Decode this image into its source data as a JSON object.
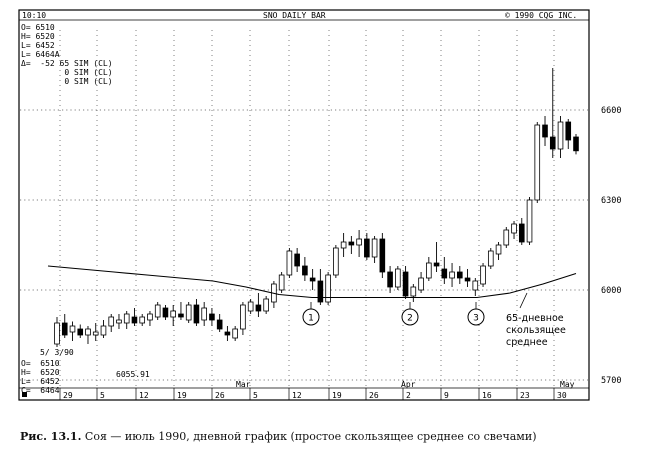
{
  "header": {
    "time": "10:10",
    "title": "SNO DAILY BAR",
    "copyright": "©  1990 CQG INC."
  },
  "top_readout": {
    "lines": [
      "O= 6510",
      "H= 6520",
      "L= 6452",
      "L= 6464A",
      "Δ=  -52 65 SIM (CL)",
      "         0 SIM (CL)",
      "         0 SIM (CL)"
    ]
  },
  "bottom_readout": {
    "date": "5/ 3/90",
    "lines": [
      "O=  6510",
      "H=  6520",
      "L=  6452",
      "C=  6464"
    ],
    "ma_value": "6055.91"
  },
  "annotation": {
    "ma_label_lines": [
      "65-дневное",
      "скользящее",
      "среднее"
    ],
    "circle_labels": [
      "1",
      "2",
      "3"
    ]
  },
  "caption": {
    "label": "Рис. 13.1.",
    "text": "Соя — июль 1990, дневной график (простое скользящее среднее со свечами)"
  },
  "chart_data": {
    "type": "candlestick",
    "title": "SNO DAILY BAR",
    "y_ticks": [
      6600,
      6300,
      6000,
      5700
    ],
    "ylim": [
      5620,
      6800
    ],
    "grid": "dotted",
    "x_ticks": [
      "29",
      "5",
      "12",
      "19",
      "26",
      "5",
      "12",
      "19",
      "26",
      "2",
      "9",
      "16",
      "23",
      "30"
    ],
    "months": [
      "Mar",
      "Apr",
      "May"
    ],
    "candles": [
      {
        "o": 5820,
        "h": 5910,
        "l": 5810,
        "c": 5890
      },
      {
        "o": 5890,
        "h": 5920,
        "l": 5840,
        "c": 5850
      },
      {
        "o": 5860,
        "h": 5895,
        "l": 5830,
        "c": 5880
      },
      {
        "o": 5870,
        "h": 5885,
        "l": 5840,
        "c": 5850
      },
      {
        "o": 5850,
        "h": 5880,
        "l": 5820,
        "c": 5870
      },
      {
        "o": 5850,
        "h": 5890,
        "l": 5830,
        "c": 5860
      },
      {
        "o": 5850,
        "h": 5900,
        "l": 5840,
        "c": 5880
      },
      {
        "o": 5880,
        "h": 5920,
        "l": 5860,
        "c": 5910
      },
      {
        "o": 5890,
        "h": 5920,
        "l": 5870,
        "c": 5900
      },
      {
        "o": 5890,
        "h": 5930,
        "l": 5870,
        "c": 5920
      },
      {
        "o": 5910,
        "h": 5940,
        "l": 5880,
        "c": 5890
      },
      {
        "o": 5890,
        "h": 5920,
        "l": 5880,
        "c": 5910
      },
      {
        "o": 5900,
        "h": 5930,
        "l": 5880,
        "c": 5920
      },
      {
        "o": 5910,
        "h": 5960,
        "l": 5900,
        "c": 5950
      },
      {
        "o": 5940,
        "h": 5950,
        "l": 5900,
        "c": 5910
      },
      {
        "o": 5910,
        "h": 5950,
        "l": 5880,
        "c": 5930
      },
      {
        "o": 5920,
        "h": 5960,
        "l": 5900,
        "c": 5910
      },
      {
        "o": 5900,
        "h": 5960,
        "l": 5890,
        "c": 5950
      },
      {
        "o": 5950,
        "h": 5970,
        "l": 5880,
        "c": 5890
      },
      {
        "o": 5900,
        "h": 5960,
        "l": 5880,
        "c": 5940
      },
      {
        "o": 5920,
        "h": 5940,
        "l": 5880,
        "c": 5900
      },
      {
        "o": 5900,
        "h": 5920,
        "l": 5860,
        "c": 5870
      },
      {
        "o": 5860,
        "h": 5880,
        "l": 5830,
        "c": 5850
      },
      {
        "o": 5840,
        "h": 5880,
        "l": 5830,
        "c": 5870
      },
      {
        "o": 5870,
        "h": 5960,
        "l": 5850,
        "c": 5950
      },
      {
        "o": 5930,
        "h": 5970,
        "l": 5920,
        "c": 5960
      },
      {
        "o": 5950,
        "h": 5990,
        "l": 5910,
        "c": 5930
      },
      {
        "o": 5930,
        "h": 5980,
        "l": 5920,
        "c": 5970
      },
      {
        "o": 5960,
        "h": 6030,
        "l": 5940,
        "c": 6020
      },
      {
        "o": 6000,
        "h": 6060,
        "l": 5990,
        "c": 6050
      },
      {
        "o": 6050,
        "h": 6140,
        "l": 6040,
        "c": 6130
      },
      {
        "o": 6120,
        "h": 6140,
        "l": 6060,
        "c": 6080
      },
      {
        "o": 6080,
        "h": 6110,
        "l": 6030,
        "c": 6050
      },
      {
        "o": 6040,
        "h": 6070,
        "l": 6000,
        "c": 6030
      },
      {
        "o": 6030,
        "h": 6070,
        "l": 5950,
        "c": 5960
      },
      {
        "o": 5960,
        "h": 6060,
        "l": 5950,
        "c": 6050
      },
      {
        "o": 6050,
        "h": 6150,
        "l": 6040,
        "c": 6140
      },
      {
        "o": 6140,
        "h": 6190,
        "l": 6110,
        "c": 6160
      },
      {
        "o": 6160,
        "h": 6180,
        "l": 6120,
        "c": 6150
      },
      {
        "o": 6150,
        "h": 6200,
        "l": 6110,
        "c": 6170
      },
      {
        "o": 6170,
        "h": 6190,
        "l": 6100,
        "c": 6110
      },
      {
        "o": 6110,
        "h": 6180,
        "l": 6090,
        "c": 6170
      },
      {
        "o": 6170,
        "h": 6190,
        "l": 6040,
        "c": 6060
      },
      {
        "o": 6060,
        "h": 6080,
        "l": 5990,
        "c": 6010
      },
      {
        "o": 6010,
        "h": 6080,
        "l": 6000,
        "c": 6070
      },
      {
        "o": 6060,
        "h": 6080,
        "l": 5970,
        "c": 5980
      },
      {
        "o": 5980,
        "h": 6020,
        "l": 5960,
        "c": 6010
      },
      {
        "o": 6000,
        "h": 6060,
        "l": 5990,
        "c": 6040
      },
      {
        "o": 6040,
        "h": 6110,
        "l": 6030,
        "c": 6090
      },
      {
        "o": 6090,
        "h": 6160,
        "l": 6060,
        "c": 6080
      },
      {
        "o": 6070,
        "h": 6110,
        "l": 6020,
        "c": 6040
      },
      {
        "o": 6040,
        "h": 6090,
        "l": 6010,
        "c": 6060
      },
      {
        "o": 6060,
        "h": 6080,
        "l": 6020,
        "c": 6040
      },
      {
        "o": 6040,
        "h": 6070,
        "l": 6010,
        "c": 6030
      },
      {
        "o": 6000,
        "h": 6040,
        "l": 5980,
        "c": 6030
      },
      {
        "o": 6020,
        "h": 6090,
        "l": 6010,
        "c": 6080
      },
      {
        "o": 6080,
        "h": 6140,
        "l": 6070,
        "c": 6130
      },
      {
        "o": 6120,
        "h": 6160,
        "l": 6100,
        "c": 6150
      },
      {
        "o": 6150,
        "h": 6210,
        "l": 6140,
        "c": 6200
      },
      {
        "o": 6190,
        "h": 6230,
        "l": 6170,
        "c": 6220
      },
      {
        "o": 6220,
        "h": 6240,
        "l": 6150,
        "c": 6160
      },
      {
        "o": 6160,
        "h": 6310,
        "l": 6150,
        "c": 6300
      },
      {
        "o": 6300,
        "h": 6560,
        "l": 6290,
        "c": 6550
      },
      {
        "o": 6550,
        "h": 6580,
        "l": 6480,
        "c": 6510
      },
      {
        "o": 6510,
        "h": 6740,
        "l": 6440,
        "c": 6470
      },
      {
        "o": 6470,
        "h": 6580,
        "l": 6440,
        "c": 6560
      },
      {
        "o": 6560,
        "h": 6570,
        "l": 6470,
        "c": 6500
      },
      {
        "o": 6510,
        "h": 6520,
        "l": 6452,
        "c": 6464
      }
    ],
    "moving_average": {
      "period": 65,
      "values": [
        6080,
        6070,
        6060,
        6050,
        6040,
        6030,
        6010,
        5985,
        5975,
        5975,
        5975,
        5975,
        5975,
        5975,
        5990,
        6020,
        6055
      ]
    },
    "series_label": "65-дневное скользящее среднее"
  }
}
